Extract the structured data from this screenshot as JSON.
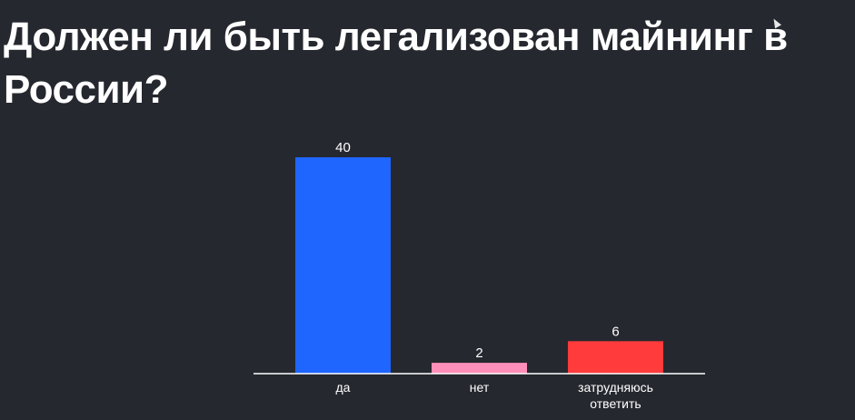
{
  "slide": {
    "title": "Должен ли быть легализован майнинг в России?"
  },
  "chart_data": {
    "type": "bar",
    "title": "",
    "xlabel": "",
    "ylabel": "",
    "categories": [
      "да",
      "нет",
      "затрудняюсь ответить"
    ],
    "category_lines": [
      [
        "да"
      ],
      [
        "нет"
      ],
      [
        "затрудняюсь",
        "ответить"
      ]
    ],
    "values": [
      40,
      2,
      6
    ],
    "colors": [
      "#1f66ff",
      "#ff8fb8",
      "#ff3b3b"
    ],
    "ylim": [
      0,
      40
    ],
    "grid": false,
    "legend": "none",
    "axis_color": "#ffffff",
    "label_color": "#ffffff"
  }
}
